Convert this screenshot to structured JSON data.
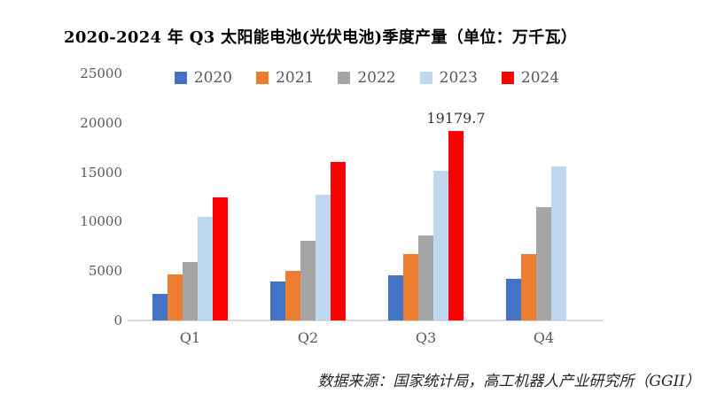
{
  "title": "2020-2024 年 Q3 太阳能电池(光伏电池)季度产量（单位：万千瓦）",
  "source": "数据来源：国家统计局，高工机器人产业研究所（GGII）",
  "chart_data": {
    "type": "bar",
    "title": "2020-2024 年 Q3 太阳能电池(光伏电池)季度产量（单位：万千瓦）",
    "categories": [
      "Q1",
      "Q2",
      "Q3",
      "Q4"
    ],
    "series": [
      {
        "name": "2020",
        "color": "#4472C4",
        "values": [
          2700,
          3900,
          4550,
          4250
        ]
      },
      {
        "name": "2021",
        "color": "#ED7D31",
        "values": [
          4650,
          5000,
          6700,
          6700
        ]
      },
      {
        "name": "2022",
        "color": "#A5A5A5",
        "values": [
          5900,
          8100,
          8600,
          11450
        ]
      },
      {
        "name": "2023",
        "color": "#BDD7EE",
        "values": [
          10450,
          12750,
          15100,
          15550
        ]
      },
      {
        "name": "2024",
        "color": "#FF0000",
        "values": [
          12500,
          16000,
          19179.7,
          null
        ]
      }
    ],
    "annotation": {
      "text": "19179.7",
      "series_index": 4,
      "category_index": 2
    },
    "y_ticks": [
      0,
      5000,
      10000,
      15000,
      20000,
      25000
    ],
    "ylim": [
      0,
      25000
    ],
    "grid": false,
    "legend_position": "top",
    "xlabel": "",
    "ylabel": ""
  },
  "colors": {
    "axis_line": "#D9D9D9",
    "tick_text": "#595959",
    "annotation_text": "#333333"
  }
}
